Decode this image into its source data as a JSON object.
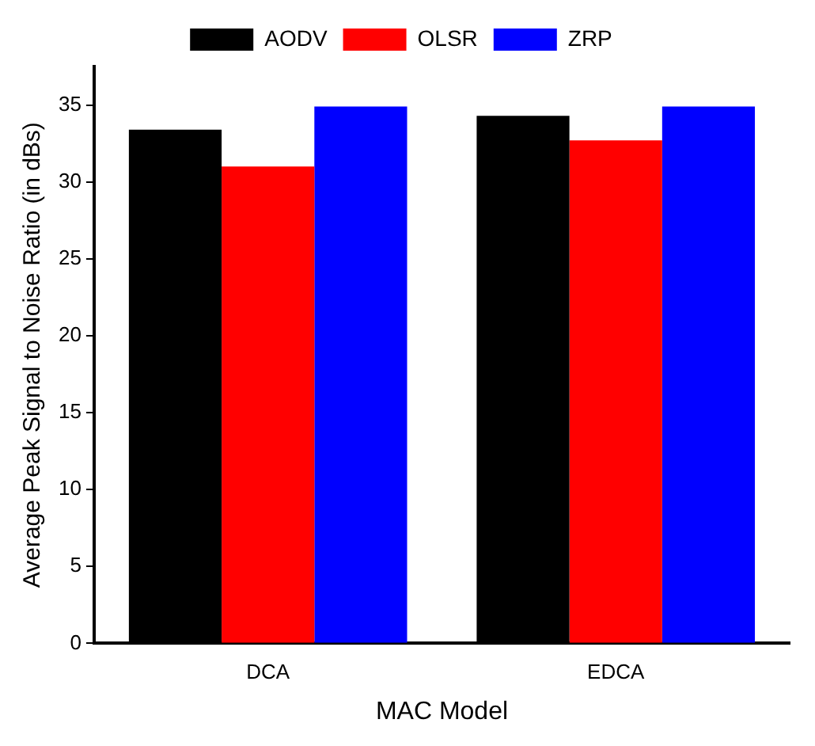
{
  "chart_data": {
    "type": "bar",
    "xlabel": "MAC Model",
    "ylabel": "Average Peak Signal to Noise Ratio (in dBs)",
    "categories": [
      "DCA",
      "EDCA"
    ],
    "series": [
      {
        "name": "AODV",
        "color": "#000000",
        "values": [
          33.4,
          34.3
        ]
      },
      {
        "name": "OLSR",
        "color": "#ff0000",
        "values": [
          31.0,
          32.7
        ]
      },
      {
        "name": "ZRP",
        "color": "#0000ff",
        "values": [
          34.9,
          34.9
        ]
      }
    ],
    "ylim": [
      0,
      37.5
    ],
    "yticks": [
      0,
      5,
      10,
      15,
      20,
      25,
      30,
      35
    ],
    "grid": false,
    "legend": "top"
  }
}
